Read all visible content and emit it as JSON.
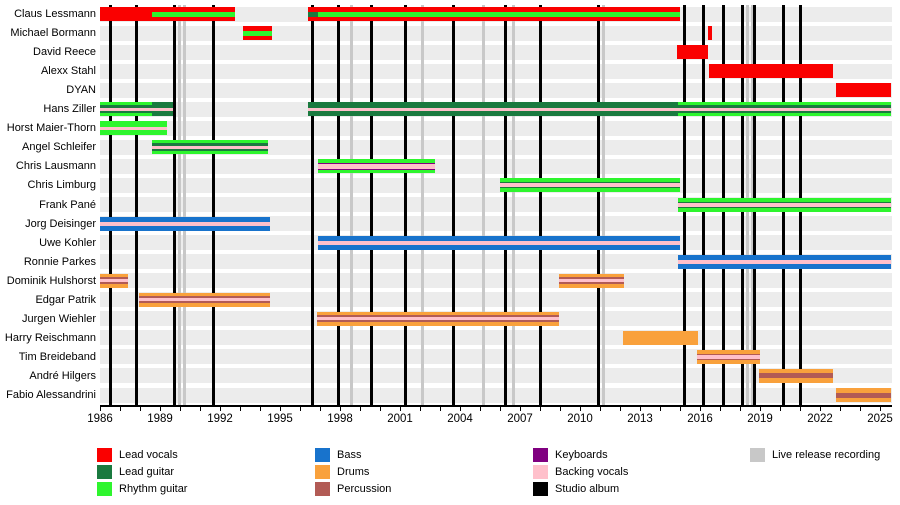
{
  "colors": {
    "lead_vocals": "#FA0000",
    "lead_guitar": "#1A7A3F",
    "rhythm_guitar": "#2EF52E",
    "bass": "#1873CC",
    "drums": "#F9A13C",
    "percussion": "#B25B55",
    "keyboards": "#800080",
    "backing_vocals": "#FFC0CB",
    "studio_album": "#000000",
    "live_release": "#C8C8C8",
    "row_band": "#ECECEC"
  },
  "chart_data": {
    "type": "timeline",
    "x_axis": {
      "year_start": 1986,
      "year_end": 2025.6,
      "tick_label_years": [
        1986,
        1989,
        1992,
        1995,
        1998,
        2001,
        2004,
        2007,
        2010,
        2013,
        2016,
        2019,
        2022,
        2025
      ]
    },
    "members": [
      {
        "name": "Claus Lessmann",
        "bars": [
          {
            "role": "lead_vocals",
            "start": 1986.0,
            "end": 1992.75,
            "stripes": [
              {
                "role": "rhythm_guitar",
                "start": 1988.6,
                "end": 1992.75,
                "pos": "center",
                "h": 5
              }
            ]
          },
          {
            "role": "lead_vocals",
            "start": 1996.4,
            "end": 2015.0,
            "stripes": [
              {
                "role": "rhythm_guitar",
                "start": 1996.4,
                "end": 2015.0,
                "pos": "center",
                "h": 5
              },
              {
                "role": "lead_guitar",
                "start": 1996.4,
                "end": 1996.9,
                "pos": "center",
                "h": 5
              }
            ]
          }
        ]
      },
      {
        "name": "Michael Bormann",
        "bars": [
          {
            "role": "lead_vocals",
            "start": 1993.15,
            "end": 1994.6,
            "stripes": [
              {
                "role": "rhythm_guitar",
                "start": 1993.15,
                "end": 1994.6,
                "pos": "center",
                "h": 5
              }
            ]
          },
          {
            "role": "lead_vocals",
            "start": 2016.4,
            "end": 2016.6,
            "stripes": []
          }
        ]
      },
      {
        "name": "David Reece",
        "bars": [
          {
            "role": "lead_vocals",
            "start": 2014.85,
            "end": 2016.4,
            "stripes": []
          }
        ]
      },
      {
        "name": "Alexx Stahl",
        "bars": [
          {
            "role": "lead_vocals",
            "start": 2016.45,
            "end": 2022.65,
            "stripes": []
          }
        ]
      },
      {
        "name": "DYAN",
        "bars": [
          {
            "role": "lead_vocals",
            "start": 2022.8,
            "end": 2025.55,
            "stripes": []
          }
        ]
      },
      {
        "name": "Hans Ziller",
        "bars": [
          {
            "role": "lead_guitar",
            "start": 1986.0,
            "end": 1989.65,
            "stripes": [
              {
                "role": "rhythm_guitar",
                "start": 1986.0,
                "end": 1988.6,
                "pos": "top",
                "h": 3
              },
              {
                "role": "rhythm_guitar",
                "start": 1986.0,
                "end": 1988.6,
                "pos": "bottom",
                "h": 3
              },
              {
                "role": "backing_vocals",
                "start": 1986.0,
                "end": 1989.65,
                "pos": "center",
                "h": 3
              }
            ]
          },
          {
            "role": "lead_guitar",
            "start": 1996.4,
            "end": 2025.55,
            "stripes": [
              {
                "role": "rhythm_guitar",
                "start": 2014.9,
                "end": 2025.55,
                "pos": "top",
                "h": 3
              },
              {
                "role": "rhythm_guitar",
                "start": 2014.9,
                "end": 2025.55,
                "pos": "bottom",
                "h": 3
              },
              {
                "role": "backing_vocals",
                "start": 1996.4,
                "end": 2025.55,
                "pos": "center",
                "h": 3
              }
            ]
          }
        ]
      },
      {
        "name": "Horst Maier-Thorn",
        "bars": [
          {
            "role": "rhythm_guitar",
            "start": 1986.0,
            "end": 1989.35,
            "stripes": [
              {
                "role": "backing_vocals",
                "start": 1986.0,
                "end": 1989.35,
                "pos": "center",
                "h": 3
              }
            ]
          }
        ]
      },
      {
        "name": "Angel Schleifer",
        "bars": [
          {
            "role": "lead_guitar",
            "start": 1988.6,
            "end": 1994.4,
            "stripes": [
              {
                "role": "rhythm_guitar",
                "start": 1988.6,
                "end": 1994.4,
                "pos": "top",
                "h": 3
              },
              {
                "role": "rhythm_guitar",
                "start": 1988.6,
                "end": 1994.4,
                "pos": "bottom",
                "h": 3
              },
              {
                "role": "backing_vocals",
                "start": 1988.6,
                "end": 1994.4,
                "pos": "center",
                "h": 3
              }
            ]
          }
        ]
      },
      {
        "name": "Chris Lausmann",
        "bars": [
          {
            "role": "rhythm_guitar",
            "start": 1996.9,
            "end": 2002.75,
            "stripes": [
              {
                "role": "keyboards",
                "start": 1996.9,
                "end": 2002.75,
                "pos": "center",
                "h": 7
              },
              {
                "role": "backing_vocals",
                "start": 1996.9,
                "end": 2002.75,
                "pos": "center",
                "h": 5
              }
            ]
          }
        ]
      },
      {
        "name": "Chris Limburg",
        "bars": [
          {
            "role": "rhythm_guitar",
            "start": 2006.0,
            "end": 2015.0,
            "stripes": [
              {
                "role": "lead_guitar",
                "start": 2006.0,
                "end": 2015.0,
                "pos": "center",
                "h": 6
              },
              {
                "role": "backing_vocals",
                "start": 2006.0,
                "end": 2015.0,
                "pos": "center",
                "h": 4
              }
            ]
          }
        ]
      },
      {
        "name": "Frank Pané",
        "bars": [
          {
            "role": "rhythm_guitar",
            "start": 2014.9,
            "end": 2025.55,
            "stripes": [
              {
                "role": "lead_guitar",
                "start": 2014.9,
                "end": 2025.55,
                "pos": "center",
                "h": 6
              },
              {
                "role": "backing_vocals",
                "start": 2014.9,
                "end": 2025.55,
                "pos": "center",
                "h": 4
              }
            ]
          }
        ]
      },
      {
        "name": "Jorg Deisinger",
        "bars": [
          {
            "role": "bass",
            "start": 1986.0,
            "end": 1994.5,
            "stripes": [
              {
                "role": "backing_vocals",
                "start": 1986.0,
                "end": 1994.5,
                "pos": "center",
                "h": 4
              }
            ]
          }
        ]
      },
      {
        "name": "Uwe Kohler",
        "bars": [
          {
            "role": "bass",
            "start": 1996.9,
            "end": 2015.0,
            "stripes": [
              {
                "role": "backing_vocals",
                "start": 1996.9,
                "end": 2015.0,
                "pos": "center",
                "h": 4
              }
            ]
          }
        ]
      },
      {
        "name": "Ronnie Parkes",
        "bars": [
          {
            "role": "bass",
            "start": 2014.9,
            "end": 2025.55,
            "stripes": [
              {
                "role": "backing_vocals",
                "start": 2014.9,
                "end": 2025.55,
                "pos": "center",
                "h": 4
              }
            ]
          }
        ]
      },
      {
        "name": "Dominik Hulshorst",
        "bars": [
          {
            "role": "drums",
            "start": 1986.0,
            "end": 1987.4,
            "stripes": [
              {
                "role": "percussion",
                "start": 1986.0,
                "end": 1987.4,
                "pos": "center",
                "h": 7
              },
              {
                "role": "backing_vocals",
                "start": 1986.0,
                "end": 1987.4,
                "pos": "center",
                "h": 3
              }
            ]
          },
          {
            "role": "drums",
            "start": 2008.95,
            "end": 2012.2,
            "stripes": [
              {
                "role": "percussion",
                "start": 2008.95,
                "end": 2012.2,
                "pos": "center",
                "h": 7
              },
              {
                "role": "backing_vocals",
                "start": 2008.95,
                "end": 2012.2,
                "pos": "center",
                "h": 3
              }
            ]
          }
        ]
      },
      {
        "name": "Edgar Patrik",
        "bars": [
          {
            "role": "drums",
            "start": 1987.95,
            "end": 1994.5,
            "stripes": [
              {
                "role": "percussion",
                "start": 1987.95,
                "end": 1994.5,
                "pos": "center",
                "h": 7
              },
              {
                "role": "backing_vocals",
                "start": 1987.95,
                "end": 1994.5,
                "pos": "center",
                "h": 3
              }
            ]
          }
        ]
      },
      {
        "name": "Jurgen Wiehler",
        "bars": [
          {
            "role": "drums",
            "start": 1996.85,
            "end": 2008.95,
            "stripes": [
              {
                "role": "percussion",
                "start": 1996.85,
                "end": 2008.95,
                "pos": "center",
                "h": 7
              },
              {
                "role": "backing_vocals",
                "start": 1996.85,
                "end": 2008.95,
                "pos": "center",
                "h": 3
              }
            ]
          }
        ]
      },
      {
        "name": "Harry Reischmann",
        "bars": [
          {
            "role": "drums",
            "start": 2012.15,
            "end": 2015.9,
            "stripes": []
          }
        ]
      },
      {
        "name": "Tim Breideband",
        "bars": [
          {
            "role": "drums",
            "start": 2015.85,
            "end": 2019.0,
            "stripes": [
              {
                "role": "percussion",
                "start": 2015.85,
                "end": 2019.0,
                "pos": "center",
                "h": 6
              },
              {
                "role": "backing_vocals",
                "start": 2015.85,
                "end": 2019.0,
                "pos": "center",
                "h": 4
              }
            ]
          }
        ]
      },
      {
        "name": "André Hilgers",
        "bars": [
          {
            "role": "drums",
            "start": 2018.95,
            "end": 2022.65,
            "stripes": [
              {
                "role": "percussion",
                "start": 2018.95,
                "end": 2022.65,
                "pos": "center",
                "h": 5
              }
            ]
          }
        ]
      },
      {
        "name": "Fabio Alessandrini",
        "bars": [
          {
            "role": "drums",
            "start": 2022.8,
            "end": 2025.55,
            "stripes": [
              {
                "role": "percussion",
                "start": 2022.8,
                "end": 2025.55,
                "pos": "center",
                "h": 5
              }
            ]
          }
        ]
      }
    ],
    "studio_album_years": [
      1986.5,
      1987.8,
      1989.7,
      1991.65,
      1996.6,
      1997.9,
      1999.55,
      2001.25,
      2003.65,
      2006.25,
      2008.0,
      2010.9,
      2015.2,
      2016.15,
      2017.15,
      2018.1,
      2018.7,
      2020.15,
      2021.0
    ],
    "live_release_years": [
      1989.95,
      1990.2,
      1998.55,
      2002.1,
      2005.15,
      2006.65,
      2011.15,
      2018.35,
      2018.6
    ],
    "legend": [
      {
        "label": "Lead vocals",
        "role": "lead_vocals",
        "col": 0,
        "row": 0
      },
      {
        "label": "Lead guitar",
        "role": "lead_guitar",
        "col": 0,
        "row": 1
      },
      {
        "label": "Rhythm guitar",
        "role": "rhythm_guitar",
        "col": 0,
        "row": 2
      },
      {
        "label": "Bass",
        "role": "bass",
        "col": 1,
        "row": 0
      },
      {
        "label": "Drums",
        "role": "drums",
        "col": 1,
        "row": 1
      },
      {
        "label": "Percussion",
        "role": "percussion",
        "col": 1,
        "row": 2
      },
      {
        "label": "Keyboards",
        "role": "keyboards",
        "col": 2,
        "row": 0
      },
      {
        "label": "Backing vocals",
        "role": "backing_vocals",
        "col": 2,
        "row": 1
      },
      {
        "label": "Studio album",
        "role": "studio_album",
        "col": 2,
        "row": 2
      },
      {
        "label": "Live release recording",
        "role": "live_release",
        "col": 3,
        "row": 0
      }
    ]
  }
}
